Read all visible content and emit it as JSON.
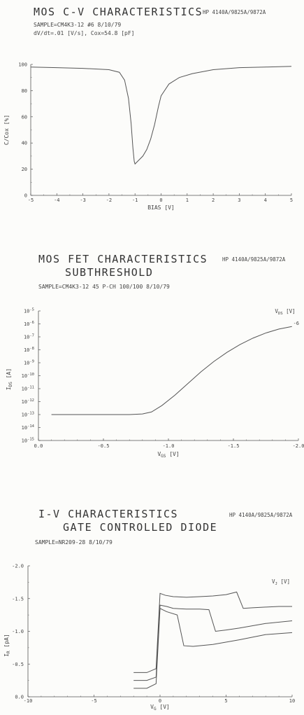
{
  "chart_data": [
    {
      "type": "line",
      "header": {
        "title": "MOS C-V CHARACTERISTICS",
        "instrument": "HP 4140A/9825A/9872A",
        "line1": "SAMPLE=CM4K3-12  #6   8/10/79",
        "line2": "dV/dt=.01 [V/s], Cox=54.8 [pF]"
      },
      "xlabel": "BIAS [V]",
      "ylabel": "C/Cox  [%]",
      "xlim": [
        -5,
        5
      ],
      "ylim": [
        0,
        100
      ],
      "xticks": [
        "-5",
        "-4",
        "-3",
        "-2",
        "-1",
        "0",
        "1",
        "2",
        "3",
        "4",
        "5"
      ],
      "yticks": [
        "0",
        "20",
        "40",
        "60",
        "80",
        "100"
      ],
      "series": [
        {
          "x": [
            -5,
            -4,
            -3,
            -2,
            -1.6,
            -1.4,
            -1.25,
            -1.15,
            -1.08,
            -1.03,
            -1.0,
            -0.95,
            -0.85,
            -0.7,
            -0.55,
            -0.4,
            -0.25,
            -0.1,
            0,
            0.3,
            0.7,
            1.2,
            2,
            3,
            4,
            5
          ],
          "y": [
            98,
            97.5,
            97,
            96,
            94,
            88,
            74,
            55,
            36,
            26,
            24,
            25,
            27,
            30,
            35,
            43,
            54,
            68,
            76,
            85,
            90,
            93,
            96,
            97.5,
            98,
            98.5
          ]
        }
      ]
    },
    {
      "type": "line",
      "header": {
        "title": "MOS FET CHARACTERISTICS",
        "subtitle": "SUBTHRESHOLD",
        "instrument": "HP 4140A/9825A/9872A",
        "line1": "SAMPLE=CM4K3-12 45  P-CH 100/100   8/10/79"
      },
      "xlabel": "VGS  [V]",
      "ylabel": "IDS  [A]",
      "xlim": [
        0.0,
        -2.0
      ],
      "ylim": [
        -15,
        -5
      ],
      "log_y": true,
      "xticks": [
        "0.0",
        "-0.5",
        "-1.0",
        "-1.5",
        "-2.0"
      ],
      "yticks": [
        "10-5",
        "10-6",
        "10-7",
        "10-8",
        "10-9",
        "10-10",
        "10-11",
        "10-12",
        "10-13",
        "10-14",
        "10-15"
      ],
      "legend_title": "VDS  [V]",
      "series": [
        {
          "name": "-6",
          "x": [
            -0.1,
            -0.4,
            -0.7,
            -0.8,
            -0.87,
            -0.95,
            -1.05,
            -1.15,
            -1.25,
            -1.35,
            -1.45,
            -1.55,
            -1.65,
            -1.75,
            -1.85,
            -1.95
          ],
          "y": [
            -13,
            -13,
            -13,
            -12.95,
            -12.8,
            -12.3,
            -11.5,
            -10.6,
            -9.7,
            -8.9,
            -8.2,
            -7.6,
            -7.1,
            -6.7,
            -6.4,
            -6.2
          ]
        }
      ]
    },
    {
      "type": "line",
      "header": {
        "title": "I-V CHARACTERISTICS",
        "subtitle": "GATE CONTROLLED DIODE",
        "instrument": "HP 4140A/9825A/9872A",
        "line1": "SAMPLE=NR209-28     8/10/79"
      },
      "xlabel": "VG  [V]",
      "ylabel": "IR   [pA]",
      "xlim": [
        -10,
        10
      ],
      "ylim": [
        0.0,
        -2.0
      ],
      "xticks": [
        "-10",
        "-5",
        "0",
        "5",
        "10"
      ],
      "yticks": [
        "0.0",
        "-0.5",
        "-1.0",
        "-1.5",
        "-2.0"
      ],
      "legend_title": "VJ  [V]",
      "series": [
        {
          "x": [
            -2,
            -1,
            -0.3,
            0,
            0.4,
            1,
            2,
            3,
            4,
            5,
            5.8,
            6.3,
            7,
            8,
            9,
            10
          ],
          "y": [
            -0.37,
            -0.37,
            -0.43,
            -1.58,
            -1.55,
            -1.53,
            -1.52,
            -1.53,
            -1.54,
            -1.56,
            -1.6,
            -1.35,
            -1.36,
            -1.37,
            -1.38,
            -1.38
          ]
        },
        {
          "x": [
            -2,
            -1,
            -0.3,
            0,
            0.5,
            1,
            2,
            3,
            3.7,
            4.2,
            5,
            6,
            8,
            10
          ],
          "y": [
            -0.25,
            -0.25,
            -0.3,
            -1.4,
            -1.38,
            -1.35,
            -1.34,
            -1.34,
            -1.33,
            -1.0,
            -1.02,
            -1.05,
            -1.12,
            -1.16
          ]
        },
        {
          "x": [
            -2,
            -1,
            -0.3,
            0,
            0.5,
            1.3,
            1.8,
            2.5,
            4,
            6,
            8,
            10
          ],
          "y": [
            -0.13,
            -0.13,
            -0.2,
            -1.35,
            -1.3,
            -1.25,
            -0.78,
            -0.77,
            -0.8,
            -0.87,
            -0.95,
            -0.98
          ]
        }
      ]
    }
  ]
}
